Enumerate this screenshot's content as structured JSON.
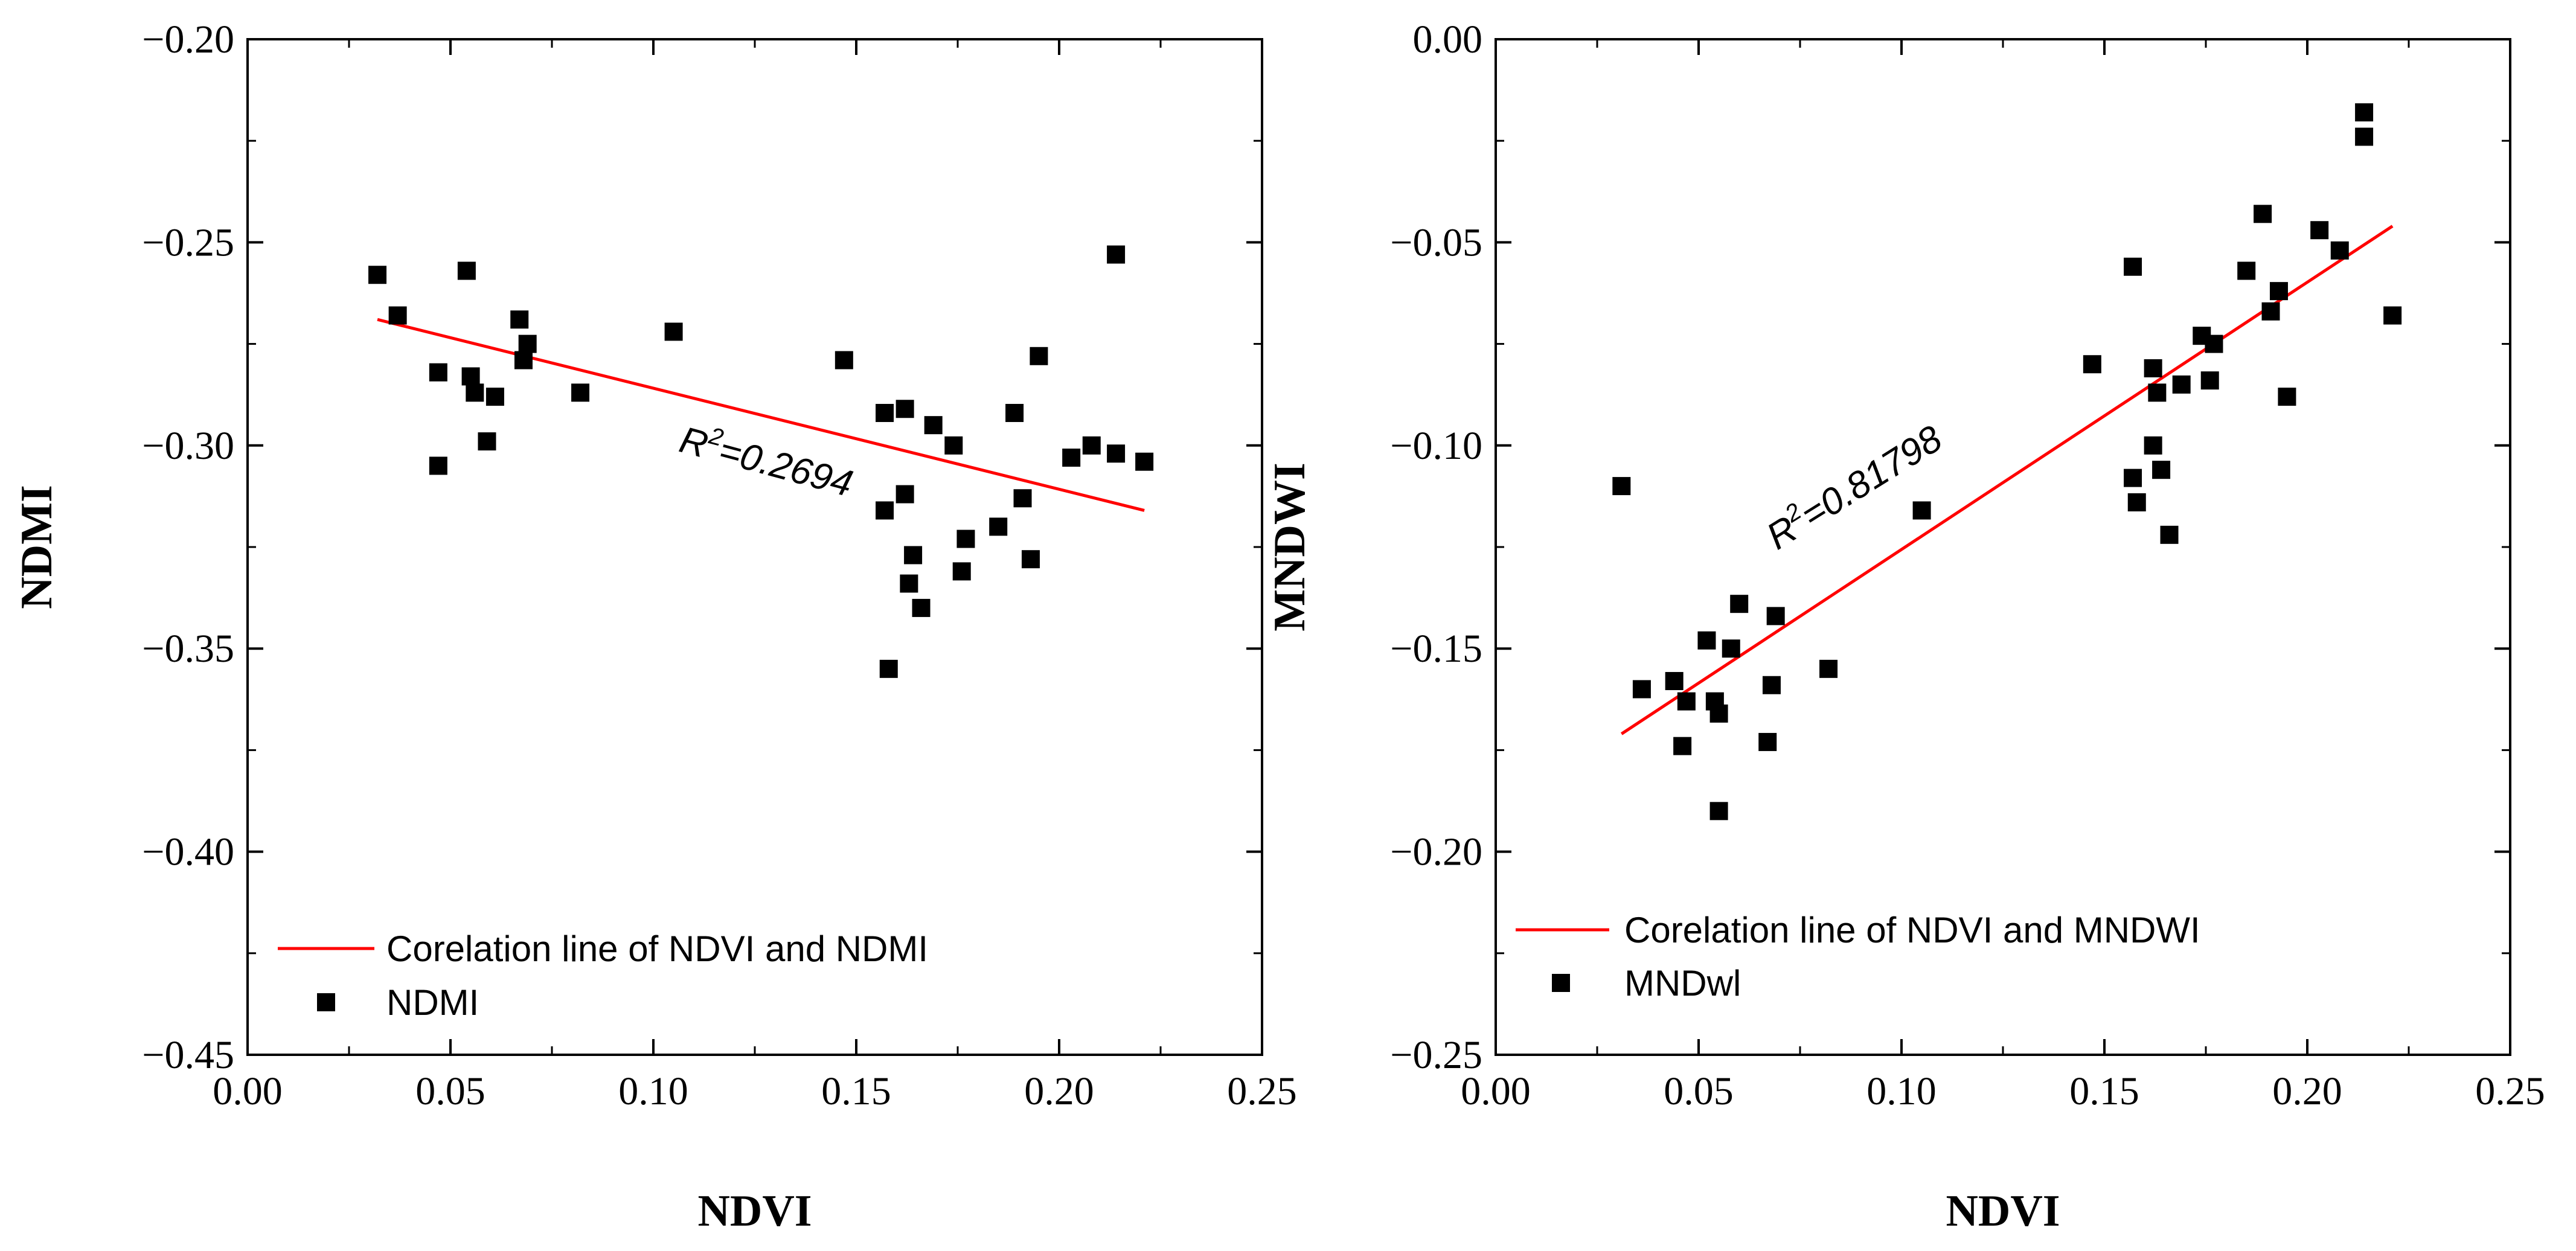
{
  "chart_data": [
    {
      "type": "scatter",
      "xlabel": "NDVI",
      "ylabel": "NDMI",
      "xlim": [
        0,
        0.25
      ],
      "ylim": [
        -0.45,
        -0.2
      ],
      "x_ticks": [
        "0.00",
        "0.05",
        "0.10",
        "0.15",
        "0.20",
        "0.25"
      ],
      "y_ticks": [
        "-0.45",
        "-0.40",
        "-0.35",
        "-0.30",
        "-0.25",
        "-0.20"
      ],
      "grid": false,
      "legend_position": "bottom-left",
      "series": [
        {
          "name": "NDMI",
          "marker": "square",
          "color": "#000000",
          "points": [
            [
              0.032,
              -0.258
            ],
            [
              0.037,
              -0.268
            ],
            [
              0.047,
              -0.282
            ],
            [
              0.047,
              -0.305
            ],
            [
              0.054,
              -0.257
            ],
            [
              0.055,
              -0.283
            ],
            [
              0.056,
              -0.287
            ],
            [
              0.059,
              -0.299
            ],
            [
              0.061,
              -0.288
            ],
            [
              0.067,
              -0.269
            ],
            [
              0.068,
              -0.279
            ],
            [
              0.069,
              -0.275
            ],
            [
              0.082,
              -0.287
            ],
            [
              0.105,
              -0.272
            ],
            [
              0.147,
              -0.279
            ],
            [
              0.157,
              -0.292
            ],
            [
              0.157,
              -0.316
            ],
            [
              0.158,
              -0.355
            ],
            [
              0.162,
              -0.291
            ],
            [
              0.162,
              -0.312
            ],
            [
              0.163,
              -0.334
            ],
            [
              0.164,
              -0.327
            ],
            [
              0.166,
              -0.34
            ],
            [
              0.169,
              -0.295
            ],
            [
              0.174,
              -0.3
            ],
            [
              0.176,
              -0.331
            ],
            [
              0.177,
              -0.323
            ],
            [
              0.185,
              -0.32
            ],
            [
              0.189,
              -0.292
            ],
            [
              0.191,
              -0.313
            ],
            [
              0.193,
              -0.328
            ],
            [
              0.195,
              -0.278
            ],
            [
              0.203,
              -0.303
            ],
            [
              0.208,
              -0.3
            ],
            [
              0.214,
              -0.253
            ],
            [
              0.214,
              -0.302
            ],
            [
              0.221,
              -0.304
            ]
          ]
        }
      ],
      "fit_line": {
        "name": "Corelation line of NDVI and NDMI",
        "color": "#ff0000",
        "x": [
          0.032,
          0.221
        ],
        "y": [
          -0.269,
          -0.316
        ]
      },
      "annotation": {
        "text_prefix": "R",
        "superscript": "2",
        "text_suffix": "=0.2694",
        "x": 0.127,
        "y": -0.307,
        "rotate_deg": 15
      }
    },
    {
      "type": "scatter",
      "xlabel": "NDVI",
      "ylabel": "MNDWI",
      "xlim": [
        0,
        0.25
      ],
      "ylim": [
        -0.25,
        0
      ],
      "x_ticks": [
        "0.00",
        "0.05",
        "0.10",
        "0.15",
        "0.20",
        "0.25"
      ],
      "y_ticks": [
        "-0.25",
        "-0.20",
        "-0.15",
        "-0.10",
        "-0.05",
        "0.00"
      ],
      "grid": false,
      "legend_position": "bottom-left",
      "series": [
        {
          "name": "MNDwl",
          "marker": "square",
          "color": "#000000",
          "points": [
            [
              0.031,
              -0.11
            ],
            [
              0.036,
              -0.16
            ],
            [
              0.044,
              -0.158
            ],
            [
              0.046,
              -0.174
            ],
            [
              0.047,
              -0.163
            ],
            [
              0.052,
              -0.148
            ],
            [
              0.054,
              -0.163
            ],
            [
              0.055,
              -0.166
            ],
            [
              0.055,
              -0.19
            ],
            [
              0.058,
              -0.15
            ],
            [
              0.06,
              -0.139
            ],
            [
              0.067,
              -0.173
            ],
            [
              0.068,
              -0.159
            ],
            [
              0.069,
              -0.142
            ],
            [
              0.082,
              -0.155
            ],
            [
              0.105,
              -0.116
            ],
            [
              0.147,
              -0.08
            ],
            [
              0.157,
              -0.056
            ],
            [
              0.157,
              -0.108
            ],
            [
              0.158,
              -0.114
            ],
            [
              0.162,
              -0.081
            ],
            [
              0.162,
              -0.1
            ],
            [
              0.163,
              -0.087
            ],
            [
              0.164,
              -0.106
            ],
            [
              0.166,
              -0.122
            ],
            [
              0.169,
              -0.085
            ],
            [
              0.174,
              -0.073
            ],
            [
              0.176,
              -0.084
            ],
            [
              0.177,
              -0.075
            ],
            [
              0.185,
              -0.057
            ],
            [
              0.189,
              -0.043
            ],
            [
              0.191,
              -0.067
            ],
            [
              0.193,
              -0.062
            ],
            [
              0.195,
              -0.088
            ],
            [
              0.203,
              -0.047
            ],
            [
              0.208,
              -0.052
            ],
            [
              0.214,
              -0.018
            ],
            [
              0.214,
              -0.024
            ],
            [
              0.221,
              -0.068
            ]
          ]
        }
      ],
      "fit_line": {
        "name": "Corelation line of NDVI and MNDWI",
        "color": "#ff0000",
        "x": [
          0.031,
          0.221
        ],
        "y": [
          -0.171,
          -0.046
        ]
      },
      "annotation": {
        "text_prefix": "R",
        "superscript": "2",
        "text_suffix": "=0.81798",
        "x": 0.09,
        "y": -0.113,
        "rotate_deg": -32
      }
    }
  ]
}
